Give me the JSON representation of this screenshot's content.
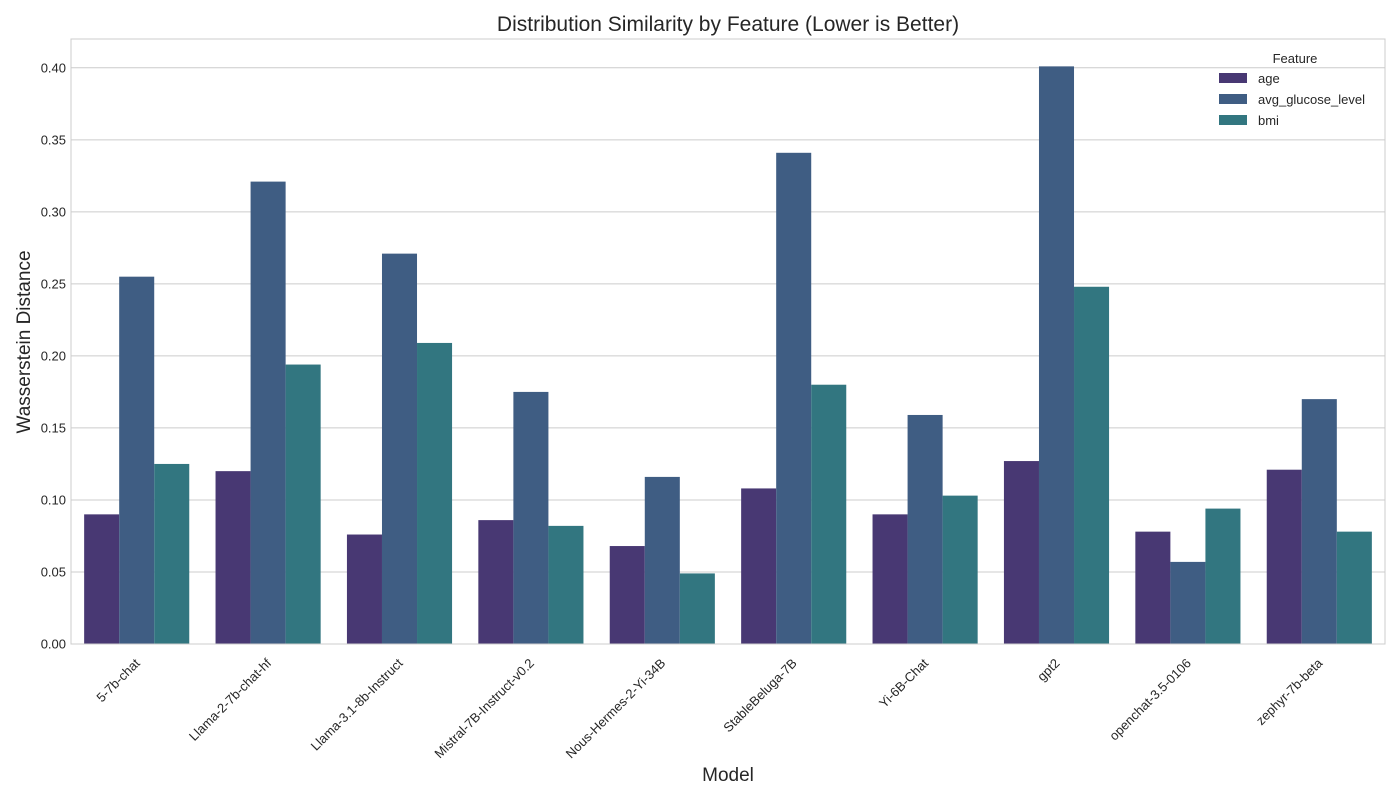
{
  "chart_data": {
    "type": "bar",
    "title": "Distribution Similarity by Feature (Lower is Better)",
    "xlabel": "Model",
    "ylabel": "Wasserstein Distance",
    "categories": [
      "5-7b-chat",
      "Llama-2-7b-chat-hf",
      "Llama-3.1-8b-Instruct",
      "Mistral-7B-Instruct-v0.2",
      "Nous-Hermes-2-Yi-34B",
      "StableBeluga-7B",
      "Yi-6B-Chat",
      "gpt2",
      "openchat-3.5-0106",
      "zephyr-7b-beta"
    ],
    "series": [
      {
        "name": "age",
        "color": "#483873",
        "values": [
          0.09,
          0.12,
          0.076,
          0.086,
          0.068,
          0.108,
          0.09,
          0.127,
          0.078,
          0.121
        ]
      },
      {
        "name": "avg_glucose_level",
        "color": "#3f5d83",
        "values": [
          0.255,
          0.321,
          0.271,
          0.175,
          0.116,
          0.341,
          0.159,
          0.401,
          0.057,
          0.17
        ]
      },
      {
        "name": "bmi",
        "color": "#327680",
        "values": [
          0.125,
          0.194,
          0.209,
          0.082,
          0.049,
          0.18,
          0.103,
          0.248,
          0.094,
          0.078
        ]
      }
    ],
    "ylim": [
      0,
      0.42
    ],
    "yticks": [
      0.0,
      0.05,
      0.1,
      0.15,
      0.2,
      0.25,
      0.3,
      0.35,
      0.4
    ],
    "ytick_labels": [
      "0.00",
      "0.05",
      "0.10",
      "0.15",
      "0.20",
      "0.25",
      "0.30",
      "0.35",
      "0.40"
    ],
    "grid": true,
    "legend": {
      "title": "Feature",
      "placement": "top-right"
    }
  }
}
